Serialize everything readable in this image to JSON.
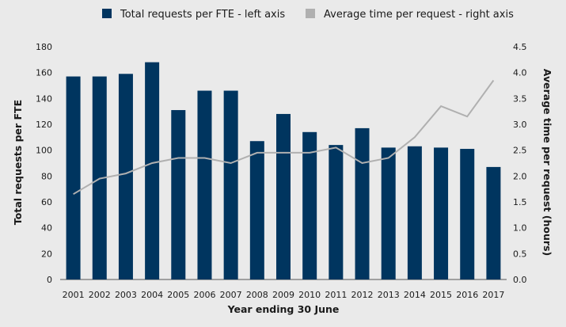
{
  "chart_data": {
    "type": "bar+line",
    "categories": [
      "2001",
      "2002",
      "2003",
      "2004",
      "2005",
      "2006",
      "2007",
      "2008",
      "2009",
      "2010",
      "2011",
      "2012",
      "2013",
      "2014",
      "2015",
      "2016",
      "2017"
    ],
    "series": [
      {
        "name": "Total requests per FTE - left axis",
        "type": "bar",
        "axis": "left",
        "color": "#00355f",
        "values": [
          157,
          157,
          159,
          168,
          131,
          146,
          146,
          107,
          128,
          114,
          104,
          117,
          102,
          103,
          102,
          101,
          87
        ]
      },
      {
        "name": "Average time per request - right axis",
        "type": "line",
        "axis": "right",
        "color": "#b0b0b0",
        "values": [
          1.65,
          1.95,
          2.05,
          2.25,
          2.35,
          2.35,
          2.25,
          2.45,
          2.45,
          2.45,
          2.55,
          2.25,
          2.35,
          2.75,
          3.35,
          3.15,
          3.85
        ]
      }
    ],
    "xlabel": "Year ending 30 June",
    "ylabel_left": "Total requests per FTE",
    "ylabel_right": "Average time per request (hours)",
    "ylim_left": [
      0,
      180
    ],
    "yticks_left": [
      0,
      20,
      40,
      60,
      80,
      100,
      120,
      140,
      160,
      180
    ],
    "ylim_right": [
      0,
      4.5
    ],
    "yticks_right": [
      "0.0",
      "0.5",
      "1.0",
      "1.5",
      "2.0",
      "2.5",
      "3.0",
      "3.5",
      "4.0",
      "4.5"
    ],
    "grid": false,
    "legend_position": "top"
  }
}
